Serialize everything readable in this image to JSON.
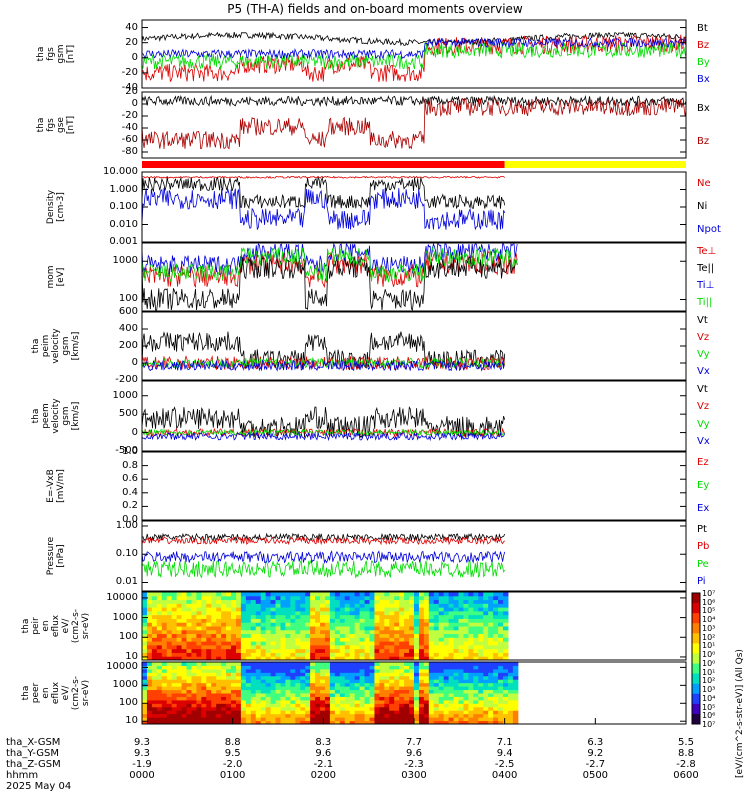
{
  "title": "P5 (TH-A) fields and on-board moments overview",
  "colors": {
    "black": "#000000",
    "red": "#dd0000",
    "green": "#00dd00",
    "blue": "#0000dd",
    "darkred": "#aa0000",
    "yellow": "#ffff00",
    "brightred": "#ff0000"
  },
  "chart_data": [
    {
      "type": "line",
      "panel": "fgs_gsm",
      "ylabel": "tha\nfgs\ngsm\n[nT]",
      "ylim": [
        -40,
        50
      ],
      "yticks": [
        "40",
        "20",
        "0",
        "-20",
        "-40"
      ],
      "series": [
        {
          "name": "Bt",
          "color": "#000000"
        },
        {
          "name": "Bz",
          "color": "#dd0000"
        },
        {
          "name": "By",
          "color": "#00dd00"
        },
        {
          "name": "Bx",
          "color": "#0000dd"
        }
      ]
    },
    {
      "type": "line",
      "panel": "fgs_gse",
      "ylabel": "tha\nfgs\ngse\n[nT]",
      "ylim": [
        -90,
        20
      ],
      "yticks": [
        "20",
        "0",
        "-20",
        "-40",
        "-60",
        "-80"
      ],
      "series": [
        {
          "name": "Bx",
          "color": "#000000"
        },
        {
          "name": "Bz",
          "color": "#aa0000"
        }
      ]
    },
    {
      "type": "bar",
      "panel": "mode_bar",
      "segments": [
        {
          "from": "0000",
          "to": "0400",
          "color": "#ff0000"
        },
        {
          "to": "0600",
          "color": "#ffff00"
        }
      ]
    },
    {
      "type": "line",
      "panel": "density",
      "ylabel": "Density\n[cm-3]",
      "scale": "log",
      "ylim": [
        0.001,
        10
      ],
      "yticks": [
        "10.000",
        "1.000",
        "0.100",
        "0.010",
        "0.001"
      ],
      "series": [
        {
          "name": "Ne",
          "color": "#dd0000"
        },
        {
          "name": "Ni",
          "color": "#000000"
        },
        {
          "name": "Npot",
          "color": "#0000dd"
        }
      ]
    },
    {
      "type": "line",
      "panel": "temperature",
      "ylabel": "mom\n[eV]",
      "scale": "log",
      "ylim": [
        50,
        3000
      ],
      "yticks": [
        "1000",
        "100"
      ],
      "series": [
        {
          "name": "Te⊥",
          "color": "#dd0000"
        },
        {
          "name": "Te||",
          "color": "#000000"
        },
        {
          "name": "Ti⊥",
          "color": "#0000dd"
        },
        {
          "name": "Ti||",
          "color": "#00dd00"
        }
      ]
    },
    {
      "type": "line",
      "panel": "peim_velocity",
      "ylabel": "tha\npeim\nvelocity\ngsm\n[km/s]",
      "ylim": [
        -200,
        600
      ],
      "yticks": [
        "600",
        "400",
        "200",
        "0",
        "-200"
      ],
      "series": [
        {
          "name": "Vt",
          "color": "#000000"
        },
        {
          "name": "Vz",
          "color": "#dd0000"
        },
        {
          "name": "Vy",
          "color": "#00dd00"
        },
        {
          "name": "Vx",
          "color": "#0000dd"
        }
      ]
    },
    {
      "type": "line",
      "panel": "peem_velocity",
      "ylabel": "tha\npeem\nvelocity\ngsm\n[km/s]",
      "ylim": [
        -500,
        1400
      ],
      "yticks": [
        "1000",
        "500",
        "0",
        "-500"
      ],
      "series": [
        {
          "name": "Vt",
          "color": "#000000"
        },
        {
          "name": "Vz",
          "color": "#dd0000"
        },
        {
          "name": "Vy",
          "color": "#00dd00"
        },
        {
          "name": "Vx",
          "color": "#0000dd"
        }
      ]
    },
    {
      "type": "line",
      "panel": "efield",
      "ylabel": "E=-VxB\n[mV/m]",
      "ylim": [
        0,
        1
      ],
      "yticks": [
        "1.0",
        "0.8",
        "0.6",
        "0.4",
        "0.2",
        "0.0"
      ],
      "series": [
        {
          "name": "Ez",
          "color": "#dd0000"
        },
        {
          "name": "Ey",
          "color": "#00dd00"
        },
        {
          "name": "Ex",
          "color": "#0000dd"
        }
      ]
    },
    {
      "type": "line",
      "panel": "pressure",
      "ylabel": "Pressure\n[nPa]",
      "scale": "log",
      "ylim": [
        0.005,
        1.5
      ],
      "yticks": [
        "1.00",
        "0.10",
        "0.01"
      ],
      "series": [
        {
          "name": "Pt",
          "color": "#000000"
        },
        {
          "name": "Pb",
          "color": "#dd0000"
        },
        {
          "name": "Pe",
          "color": "#00dd00"
        },
        {
          "name": "Pi",
          "color": "#0000dd"
        }
      ]
    },
    {
      "type": "heatmap",
      "panel": "peir_spectrogram",
      "ylabel": "tha\npeir\nen\neflux\neV/\n(cm2-s-\nsr-eV)",
      "scale": "log",
      "ylim": [
        7,
        20000
      ],
      "yticks": [
        "10000",
        "1000",
        "100",
        "10"
      ]
    },
    {
      "type": "heatmap",
      "panel": "peer_spectrogram",
      "ylabel": "tha\npeer\nen\neflux\neV/\n(cm2-s-\nsr-eV)",
      "scale": "log",
      "ylim": [
        7,
        20000
      ],
      "yticks": [
        "10000",
        "1000",
        "100",
        "10"
      ]
    }
  ],
  "colorbar": {
    "label": "[eV/(cm^2-s-str-eV)] (All Qs)",
    "ticks": [
      "10⁷",
      "10⁶",
      "10⁵",
      "10⁴",
      "10³",
      "10²",
      "10¹",
      "10⁰",
      "10⁰",
      "10¹",
      "10²",
      "10³",
      "10⁴",
      "10⁵",
      "10⁶",
      "10⁷"
    ]
  },
  "x_axis": {
    "row_labels": [
      "tha_X-GSM",
      "tha_Y-GSM",
      "tha_Z-GSM",
      "hhmm",
      "2025 May 04"
    ],
    "x_gsm": [
      "9.3",
      "8.8",
      "8.3",
      "7.7",
      "7.1",
      "6.3",
      "5.5"
    ],
    "y_gsm": [
      "9.3",
      "9.5",
      "9.6",
      "9.6",
      "9.4",
      "9.2",
      "8.8"
    ],
    "z_gsm": [
      "-1.9",
      "-2.0",
      "-2.1",
      "-2.3",
      "-2.5",
      "-2.7",
      "-2.8"
    ],
    "hhmm": [
      "0000",
      "0100",
      "0200",
      "0300",
      "0400",
      "0500",
      "0600"
    ]
  }
}
